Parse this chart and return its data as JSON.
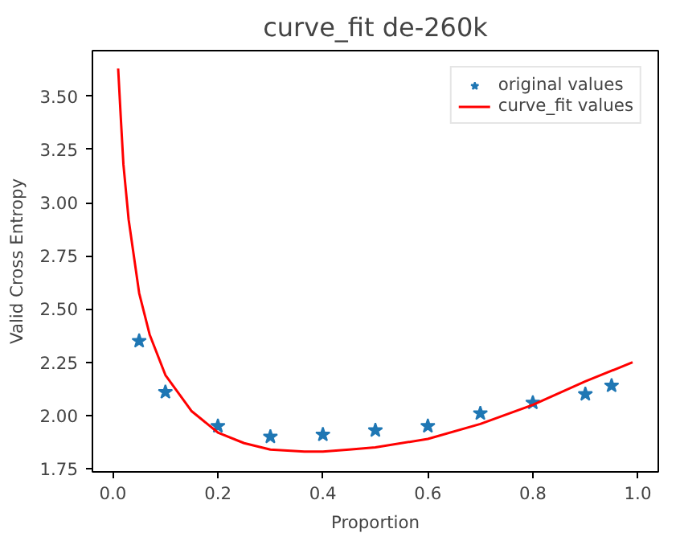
{
  "chart_data": {
    "type": "scatter",
    "title": "curve_fit de-260k",
    "xlabel": "Proportion",
    "ylabel": "Valid Cross Entropy",
    "xlim": [
      -0.039,
      1.039
    ],
    "ylim": [
      1.735,
      3.714
    ],
    "xticks": [
      {
        "value": 0,
        "label": "0.0"
      },
      0.2,
      0.4,
      0.6,
      0.8,
      {
        "value": 1,
        "label": "1.0"
      }
    ],
    "yticks": [
      {
        "value": 1.75,
        "label": "1.75"
      },
      {
        "value": 2,
        "label": "2.00"
      },
      {
        "value": 2.25,
        "label": "2.25"
      },
      {
        "value": 2.5,
        "label": "2.50"
      },
      {
        "value": 2.75,
        "label": "2.75"
      },
      {
        "value": 3,
        "label": "3.00"
      },
      {
        "value": 3.25,
        "label": "3.25"
      },
      {
        "value": 3.5,
        "label": "3.50"
      }
    ],
    "grid": false,
    "legend": "top right",
    "series": [
      {
        "name": "original values",
        "marker": "star",
        "color": "#1f77b4",
        "x": [
          0.05,
          0.1,
          0.2,
          0.3,
          0.4,
          0.5,
          0.6,
          0.7,
          0.8,
          0.9,
          0.95
        ],
        "values": [
          2.35,
          2.11,
          1.95,
          1.9,
          1.91,
          1.93,
          1.95,
          2.01,
          2.06,
          2.1,
          2.14
        ]
      },
      {
        "name": "curve_fit values",
        "type": "line",
        "color": "#ff0000",
        "x": [
          0.01,
          0.015,
          0.02,
          0.03,
          0.05,
          0.07,
          0.1,
          0.15,
          0.2,
          0.25,
          0.3,
          0.365,
          0.4,
          0.45,
          0.5,
          0.6,
          0.7,
          0.8,
          0.9,
          0.99
        ],
        "values": [
          3.63,
          3.4,
          3.18,
          2.92,
          2.575,
          2.38,
          2.19,
          2.02,
          1.92,
          1.87,
          1.84,
          1.83,
          1.83,
          1.84,
          1.85,
          1.89,
          1.96,
          2.05,
          2.16,
          2.25
        ]
      }
    ]
  }
}
